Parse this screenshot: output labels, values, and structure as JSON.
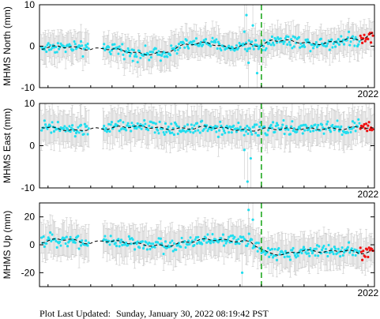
{
  "footer": {
    "label": "Plot Last Updated:",
    "value": "Sunday, January 30, 2022 08:19:42 PST"
  },
  "colors": {
    "data_point": "#22ddee",
    "recent_point": "#ee1111",
    "error_bar": "#c8c8c8",
    "model_line": "#000000",
    "event_line": "#22aa22"
  },
  "chart_data": [
    {
      "type": "scatter",
      "ylabel": "MHMS North (mm)",
      "ylim": [
        -10,
        10
      ],
      "yticks": [
        -10,
        0,
        10
      ],
      "year_label": "2022",
      "x_range_years": [
        2006.6,
        2022.3
      ],
      "event_line_year": 2017.0,
      "recent_start_year": 2021.6,
      "error_bar_mm": 3.0,
      "model": {
        "x": [
          2006.7,
          2007.5,
          2008.5,
          2009.0,
          2009.6,
          2010.5,
          2011.5,
          2012.5,
          2013.5,
          2014.5,
          2015.5,
          2016.5,
          2017.0,
          2017.5,
          2018.5,
          2019.5,
          2020.5,
          2021.0,
          2021.6,
          2022.2
        ],
        "y": [
          -0.5,
          0.0,
          -0.5,
          -0.8,
          -0.5,
          -1.0,
          -2.0,
          -1.5,
          0.5,
          0.8,
          -0.5,
          0.5,
          0.0,
          1.5,
          1.2,
          0.5,
          1.0,
          1.8,
          1.5,
          3.0
        ]
      },
      "outliers": [
        {
          "x": 2016.3,
          "y": 7.5
        },
        {
          "x": 2016.4,
          "y": -4.0
        },
        {
          "x": 2016.6,
          "y": 5.0
        },
        {
          "x": 2016.8,
          "y": -6.5
        },
        {
          "x": 2016.2,
          "y": 3.5
        }
      ]
    },
    {
      "type": "scatter",
      "ylabel": "MHMS East (mm)",
      "ylim": [
        -10,
        10
      ],
      "yticks": [
        -10,
        0,
        10
      ],
      "year_label": "2022",
      "x_range_years": [
        2006.6,
        2022.3
      ],
      "event_line_year": 2017.0,
      "recent_start_year": 2021.6,
      "error_bar_mm": 3.5,
      "model": {
        "x": [
          2006.7,
          2007.5,
          2008.3,
          2009.0,
          2009.6,
          2010.5,
          2011.5,
          2012.5,
          2013.5,
          2014.5,
          2015.5,
          2016.5,
          2017.0,
          2017.5,
          2018.5,
          2019.5,
          2020.5,
          2021.0,
          2021.6,
          2022.2
        ],
        "y": [
          4.5,
          4.0,
          3.5,
          4.0,
          4.0,
          4.5,
          4.5,
          4.0,
          4.0,
          4.5,
          4.0,
          3.5,
          4.0,
          4.0,
          4.0,
          4.0,
          4.0,
          4.0,
          4.5,
          4.0
        ]
      },
      "outliers": [
        {
          "x": 2016.35,
          "y": -8.5
        },
        {
          "x": 2016.5,
          "y": -3.0
        },
        {
          "x": 2016.2,
          "y": -1.0
        }
      ]
    },
    {
      "type": "scatter",
      "ylabel": "MHMS Up (mm)",
      "ylim": [
        -30,
        30
      ],
      "yticks": [
        -20,
        0,
        20
      ],
      "year_label": "2022",
      "x_range_years": [
        2006.6,
        2022.3
      ],
      "event_line_year": 2017.0,
      "recent_start_year": 2021.6,
      "error_bar_mm": 10.0,
      "model": {
        "x": [
          2006.7,
          2007.5,
          2008.0,
          2008.5,
          2009.0,
          2009.6,
          2010.5,
          2011.5,
          2012.5,
          2013.5,
          2014.5,
          2015.5,
          2016.5,
          2017.0,
          2017.3,
          2018.0,
          2019.0,
          2020.0,
          2021.0,
          2021.6,
          2022.2
        ],
        "y": [
          2.0,
          4.0,
          4.0,
          2.0,
          1.0,
          3.0,
          2.0,
          0.0,
          -1.0,
          2.0,
          4.0,
          3.0,
          2.0,
          -3.0,
          -6.0,
          -7.0,
          -4.0,
          -5.0,
          -4.0,
          -6.0,
          -5.0
        ]
      },
      "outliers": [
        {
          "x": 2016.4,
          "y": 25.0
        },
        {
          "x": 2016.1,
          "y": -20.0
        },
        {
          "x": 2016.6,
          "y": 18.0
        }
      ]
    }
  ]
}
